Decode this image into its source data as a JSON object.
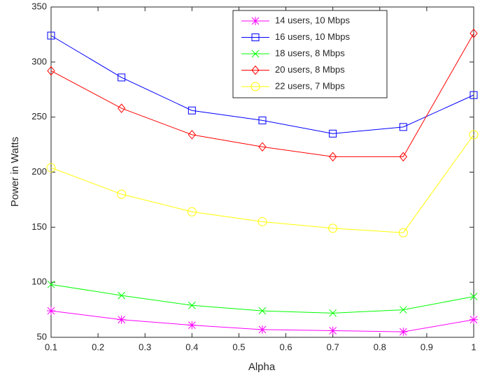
{
  "chart_data": {
    "type": "line",
    "x_label": "Alpha",
    "y_label": "Power in Watts",
    "x": [
      0.1,
      0.25,
      0.4,
      0.55,
      0.7,
      0.85,
      1
    ],
    "series": [
      {
        "name": "14 users, 10 Mbps",
        "color": "#ff00ff",
        "marker": "star",
        "values": [
          74,
          66,
          61,
          57,
          56,
          55,
          66
        ]
      },
      {
        "name": "16 users, 10 Mbps",
        "color": "#0000ff",
        "marker": "square",
        "values": [
          324,
          286,
          256,
          247,
          235,
          241,
          270
        ]
      },
      {
        "name": "18 users, 8 Mbps",
        "color": "#00ff00",
        "marker": "x",
        "values": [
          98,
          88,
          79,
          74,
          72,
          75,
          87
        ]
      },
      {
        "name": "20 users, 8 Mbps",
        "color": "#ff0000",
        "marker": "diamond",
        "values": [
          292,
          258,
          234,
          223,
          214,
          214,
          326
        ]
      },
      {
        "name": "22 users, 7 Mbps",
        "color": "#ffff00",
        "marker": "circle",
        "values": [
          204,
          180,
          164,
          155,
          149,
          145,
          234
        ]
      }
    ],
    "xlim": [
      0.1,
      1
    ],
    "xticks": [
      0.1,
      0.2,
      0.3,
      0.4,
      0.5,
      0.6,
      0.7,
      0.8,
      0.9,
      1
    ],
    "ylim": [
      50,
      350
    ],
    "yticks": [
      50,
      100,
      150,
      200,
      250,
      300,
      350
    ],
    "grid": false
  }
}
